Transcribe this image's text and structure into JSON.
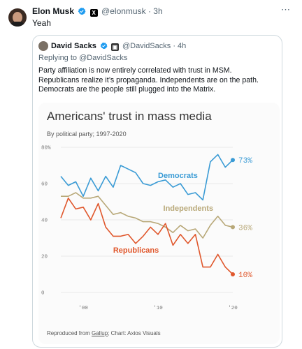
{
  "tweet": {
    "author_name": "Elon Musk",
    "author_handle": "@elonmusk",
    "time": "· 3h",
    "text": "Yeah",
    "more_icon": "⋯"
  },
  "quote": {
    "author_name": "David Sacks",
    "author_handle": "@DavidSacks",
    "time": "· 4h",
    "replying_prefix": "Replying to",
    "replying_handle": "@DavidSacks",
    "lines": [
      "Party affiliation is now entirely correlated with trust in MSM.",
      "Republicans realize it’s propaganda. Independents are on the path.",
      "Democrats are the people still plugged into the Matrix."
    ]
  },
  "chart_card": {
    "title": "Americans' trust in mass media",
    "subtitle": "By political party; 1997-2020",
    "footer_prefix": "Reproduced from",
    "footer_link": "Gallup",
    "footer_suffix": "; Chart: Axios Visuals"
  },
  "chart_data": {
    "type": "line",
    "ylim": [
      0,
      80
    ],
    "xlim": [
      1997,
      2020
    ],
    "yticks": [
      {
        "value": 80,
        "label": "80%"
      },
      {
        "value": 60,
        "label": "60"
      },
      {
        "value": 40,
        "label": "40"
      },
      {
        "value": 20,
        "label": "20"
      },
      {
        "value": 0,
        "label": "0"
      }
    ],
    "xticks": [
      {
        "value": 2000,
        "label": "'00"
      },
      {
        "value": 2010,
        "label": "'10"
      },
      {
        "value": 2020,
        "label": "'20"
      }
    ],
    "series": [
      {
        "name": "Democrats",
        "color": "#3a9bd5",
        "end_label": "73%",
        "x": [
          1997,
          1998,
          1999,
          2000,
          2001,
          2002,
          2003,
          2004,
          2005,
          2006,
          2007,
          2008,
          2009,
          2010,
          2011,
          2012,
          2013,
          2014,
          2015,
          2016,
          2017,
          2018,
          2019,
          2020
        ],
        "y": [
          64,
          59,
          61,
          53,
          63,
          56,
          64,
          58,
          70,
          68,
          66,
          60,
          59,
          61,
          62,
          58,
          60,
          54,
          55,
          51,
          72,
          76,
          69,
          73
        ]
      },
      {
        "name": "Independents",
        "color": "#b8a878",
        "end_label": "36%",
        "x": [
          1997,
          1998,
          1999,
          2000,
          2001,
          2002,
          2003,
          2004,
          2005,
          2006,
          2007,
          2008,
          2009,
          2010,
          2011,
          2012,
          2013,
          2014,
          2015,
          2016,
          2017,
          2018,
          2019,
          2020
        ],
        "y": [
          53,
          53,
          55,
          52,
          52,
          53,
          48,
          43,
          44,
          42,
          41,
          39,
          39,
          38,
          36,
          33,
          37,
          34,
          35,
          30,
          37,
          42,
          37,
          36
        ]
      },
      {
        "name": "Republicans",
        "color": "#e0572c",
        "end_label": "10%",
        "x": [
          1997,
          1998,
          1999,
          2000,
          2001,
          2002,
          2003,
          2004,
          2005,
          2006,
          2007,
          2008,
          2009,
          2010,
          2011,
          2012,
          2013,
          2014,
          2015,
          2016,
          2017,
          2018,
          2019,
          2020
        ],
        "y": [
          41,
          52,
          46,
          47,
          40,
          49,
          36,
          31,
          31,
          32,
          27,
          31,
          36,
          32,
          38,
          26,
          32,
          27,
          32,
          14,
          14,
          21,
          14,
          10
        ]
      }
    ]
  }
}
